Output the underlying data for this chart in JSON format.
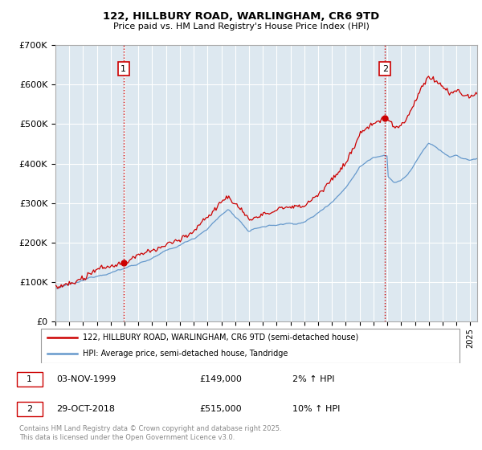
{
  "title_line1": "122, HILLBURY ROAD, WARLINGHAM, CR6 9TD",
  "title_line2": "Price paid vs. HM Land Registry's House Price Index (HPI)",
  "ylim": [
    0,
    700000
  ],
  "yticks": [
    0,
    100000,
    200000,
    300000,
    400000,
    500000,
    600000,
    700000
  ],
  "ytick_labels": [
    "£0",
    "£100K",
    "£200K",
    "£300K",
    "£400K",
    "£500K",
    "£600K",
    "£700K"
  ],
  "xlim_start": 1995.0,
  "xlim_end": 2025.5,
  "purchase1_year": 1999.92,
  "purchase1_price": 149000,
  "purchase2_year": 2018.83,
  "purchase2_price": 515000,
  "vline_color": "#cc0000",
  "legend_label_house": "122, HILLBURY ROAD, WARLINGHAM, CR6 9TD (semi-detached house)",
  "legend_label_hpi": "HPI: Average price, semi-detached house, Tandridge",
  "house_line_color": "#cc0000",
  "hpi_line_color": "#6699cc",
  "annotation1_label": "1",
  "annotation2_label": "2",
  "table_row1": [
    "1",
    "03-NOV-1999",
    "£149,000",
    "2% ↑ HPI"
  ],
  "table_row2": [
    "2",
    "29-OCT-2018",
    "£515,000",
    "10% ↑ HPI"
  ],
  "footer": "Contains HM Land Registry data © Crown copyright and database right 2025.\nThis data is licensed under the Open Government Licence v3.0.",
  "background_color": "#ffffff",
  "plot_bg_color": "#dde8f0",
  "grid_color": "#ffffff"
}
